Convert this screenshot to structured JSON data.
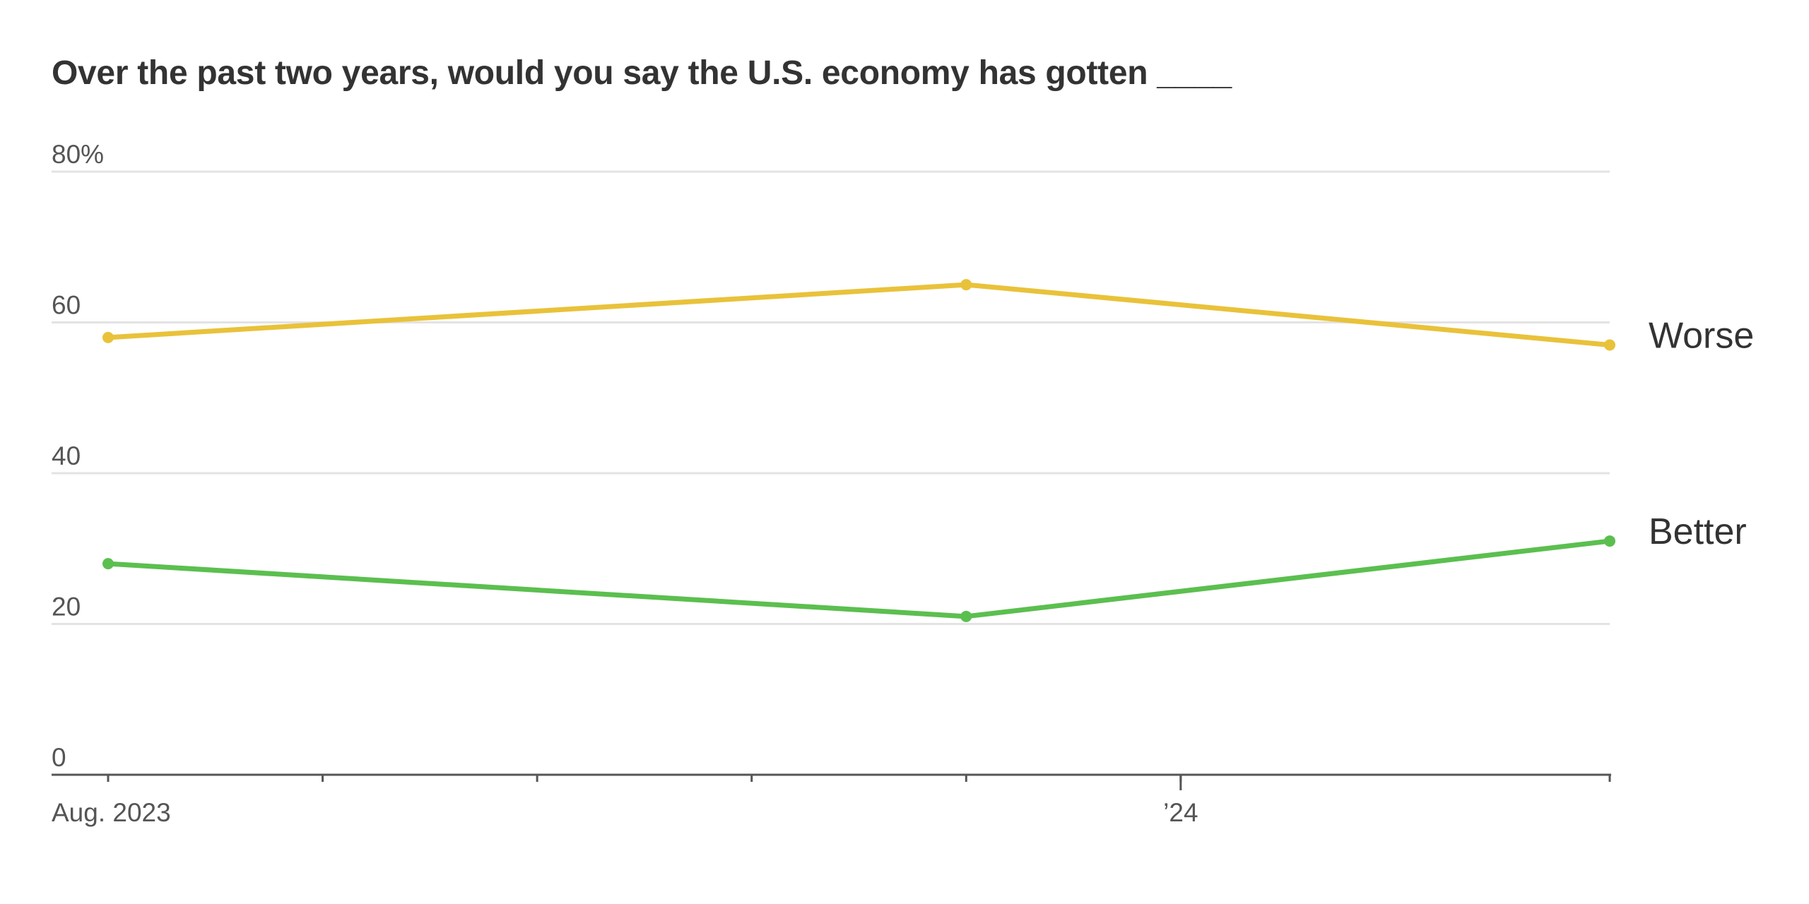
{
  "chart_data": {
    "type": "line",
    "title": "Over the past two years, would you say the U.S. economy has gotten ____",
    "x_dates": [
      "2023-08",
      "2023-12",
      "2024-03"
    ],
    "x_tick_labels": [
      {
        "date": "2023-08",
        "label": "Aug. 2023"
      },
      {
        "date": "2024-01",
        "label": "’24"
      }
    ],
    "x_minor_ticks": [
      "2023-08",
      "2023-09",
      "2023-10",
      "2023-11",
      "2023-12",
      "2024-01",
      "2024-03"
    ],
    "x_range": [
      "2023-08",
      "2024-03"
    ],
    "ylim": [
      0,
      80
    ],
    "y_ticks": [
      {
        "value": 0,
        "label": "0"
      },
      {
        "value": 20,
        "label": "20"
      },
      {
        "value": 40,
        "label": "40"
      },
      {
        "value": 60,
        "label": "60"
      },
      {
        "value": 80,
        "label": "80%"
      }
    ],
    "grid": true,
    "series": [
      {
        "name": "Worse",
        "color": "#e9c23a",
        "values": [
          58,
          65,
          57
        ]
      },
      {
        "name": "Better",
        "color": "#5bbf4f",
        "values": [
          28,
          21,
          31
        ]
      }
    ],
    "legend_placement": "right, direct labels"
  }
}
